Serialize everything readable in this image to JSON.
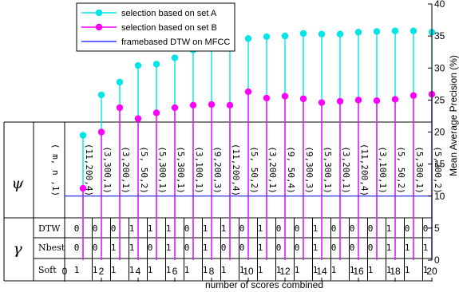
{
  "chart_data": {
    "type": "scatter",
    "xlabel": "number of scores combined",
    "ylabel": "Mean Average Precision (%)",
    "xlim": [
      0,
      20
    ],
    "ylim": [
      0,
      40
    ],
    "xticks": [
      0,
      2,
      4,
      6,
      8,
      10,
      12,
      14,
      16,
      18,
      20
    ],
    "yticks": [
      0,
      5,
      10,
      15,
      20,
      25,
      30,
      35,
      40
    ],
    "legend_position": "top-left",
    "x": [
      1,
      2,
      3,
      4,
      5,
      6,
      7,
      8,
      9,
      10,
      11,
      12,
      13,
      14,
      15,
      16,
      17,
      18,
      19,
      20
    ],
    "series": [
      {
        "name": "selection based on set A",
        "color": "#00e5e5",
        "style": "stem",
        "values": [
          19.5,
          25.8,
          27.8,
          30.4,
          30.6,
          31.6,
          32.8,
          33.2,
          33.6,
          34.6,
          34.9,
          35.0,
          35.4,
          35.3,
          35.3,
          35.6,
          35.7,
          35.8,
          35.8,
          35.6
        ]
      },
      {
        "name": "selection based on set B",
        "color": "#ff00ff",
        "style": "stem",
        "values": [
          11.2,
          20.0,
          23.8,
          22.1,
          23.0,
          23.8,
          24.2,
          24.3,
          24.2,
          26.3,
          25.3,
          25.6,
          25.2,
          24.6,
          24.8,
          25.0,
          24.9,
          25.1,
          25.7,
          25.9
        ]
      },
      {
        "name": "framebased DTW on MFCC",
        "color": "#3333ff",
        "style": "line",
        "values": [
          10,
          10,
          10,
          10,
          10,
          10,
          10,
          10,
          10,
          10,
          10,
          10,
          10,
          10,
          10,
          10,
          10,
          10,
          10,
          10
        ]
      }
    ],
    "table": {
      "psi_symbol": "ψ",
      "gamma_symbol": "γ",
      "param_header": "( m, n ,1)",
      "params": [
        "(11,200,4)",
        "(3,300,1)",
        "(3,200,1)",
        "(5, 50,2)",
        "(5,300,1)",
        "(5,300,1)",
        "(3,100,1)",
        "(9,200,3)",
        "(11,200,4)",
        "(5, 50,2)",
        "(3,200,1)",
        "(9, 50,4)",
        "(9,300,3)",
        "(5,300,1)",
        "(3,200,1)",
        "(11,200,4)",
        "(3,100,1)",
        "(5, 50,2)",
        "(5,300,1)",
        "(5,200,2)"
      ],
      "rows": [
        {
          "label": "DTW",
          "values": [
            0,
            0,
            0,
            1,
            1,
            1,
            0,
            1,
            1,
            0,
            1,
            0,
            0,
            1,
            0,
            0,
            0,
            1,
            0,
            0
          ]
        },
        {
          "label": "Nbest",
          "values": [
            0,
            0,
            1,
            1,
            0,
            1,
            0,
            1,
            0,
            0,
            1,
            0,
            0,
            1,
            0,
            0,
            0,
            1,
            1,
            1
          ]
        },
        {
          "label": "Soft",
          "values": [
            1,
            1,
            1,
            1,
            1,
            1,
            1,
            1,
            1,
            1,
            1,
            1,
            1,
            1,
            1,
            1,
            1,
            1,
            1,
            1
          ]
        }
      ]
    }
  }
}
